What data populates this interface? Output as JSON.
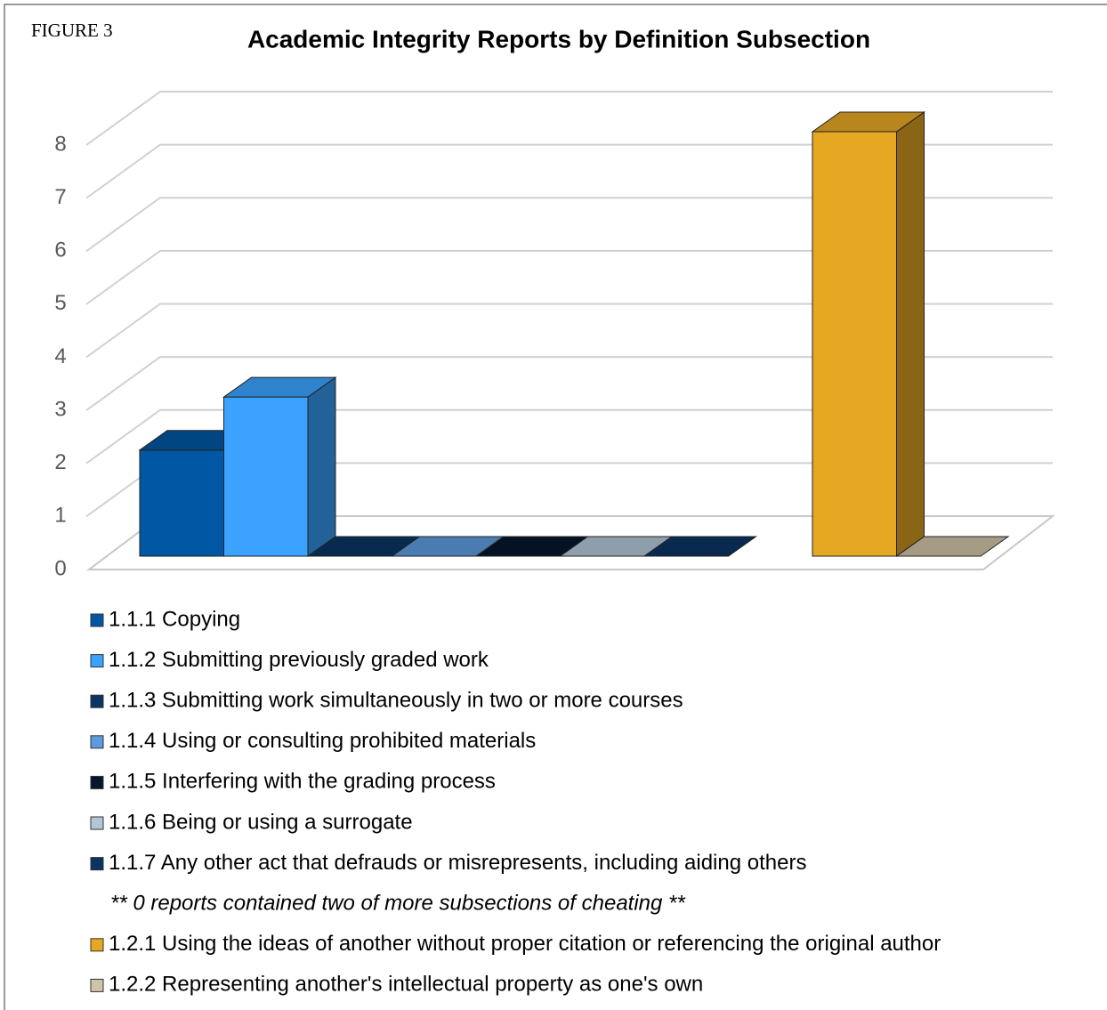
{
  "figure_label": "FIGURE 3",
  "chart_data": {
    "type": "bar3d",
    "title": "Academic Integrity Reports by Definition Subsection",
    "ylim": [
      0,
      8
    ],
    "yticks": [
      0,
      1,
      2,
      3,
      4,
      5,
      6,
      7,
      8
    ],
    "grid": true,
    "groups": [
      {
        "series": [
          {
            "name": "1.1.1  Copying",
            "color": "#0057a3",
            "values": [
              2
            ]
          },
          {
            "name": "1.1.2  Submitting previously graded work",
            "color": "#3ba2ff",
            "values": [
              3
            ]
          },
          {
            "name": "1.1.3  Submitting work simultaneously in two or more courses",
            "color": "#0b3563",
            "values": [
              0
            ]
          },
          {
            "name": "1.1.4  Using or consulting prohibited materials",
            "color": "#5d9bdd",
            "values": [
              0
            ]
          },
          {
            "name": "1.1.5  Interfering with the grading process",
            "color": "#06162c",
            "values": [
              0
            ]
          },
          {
            "name": "1.1.6  Being or using a surrogate",
            "color": "#b3c6d6",
            "values": [
              0
            ]
          },
          {
            "name": "1.1.7  Any other act that defrauds or misrepresents, including aiding others",
            "color": "#0b3462",
            "values": [
              0
            ]
          }
        ],
        "note": "**  0 reports contained two of more subsections of cheating **"
      },
      {
        "series": [
          {
            "name": "1.2.1  Using the ideas of another without proper citation or referencing the original author",
            "color": "#e6a823",
            "values": [
              8
            ]
          },
          {
            "name": "1.2.2  Representing another's intellectual property as one's own",
            "color": "#cfc3a8",
            "values": [
              0
            ]
          }
        ]
      }
    ]
  }
}
